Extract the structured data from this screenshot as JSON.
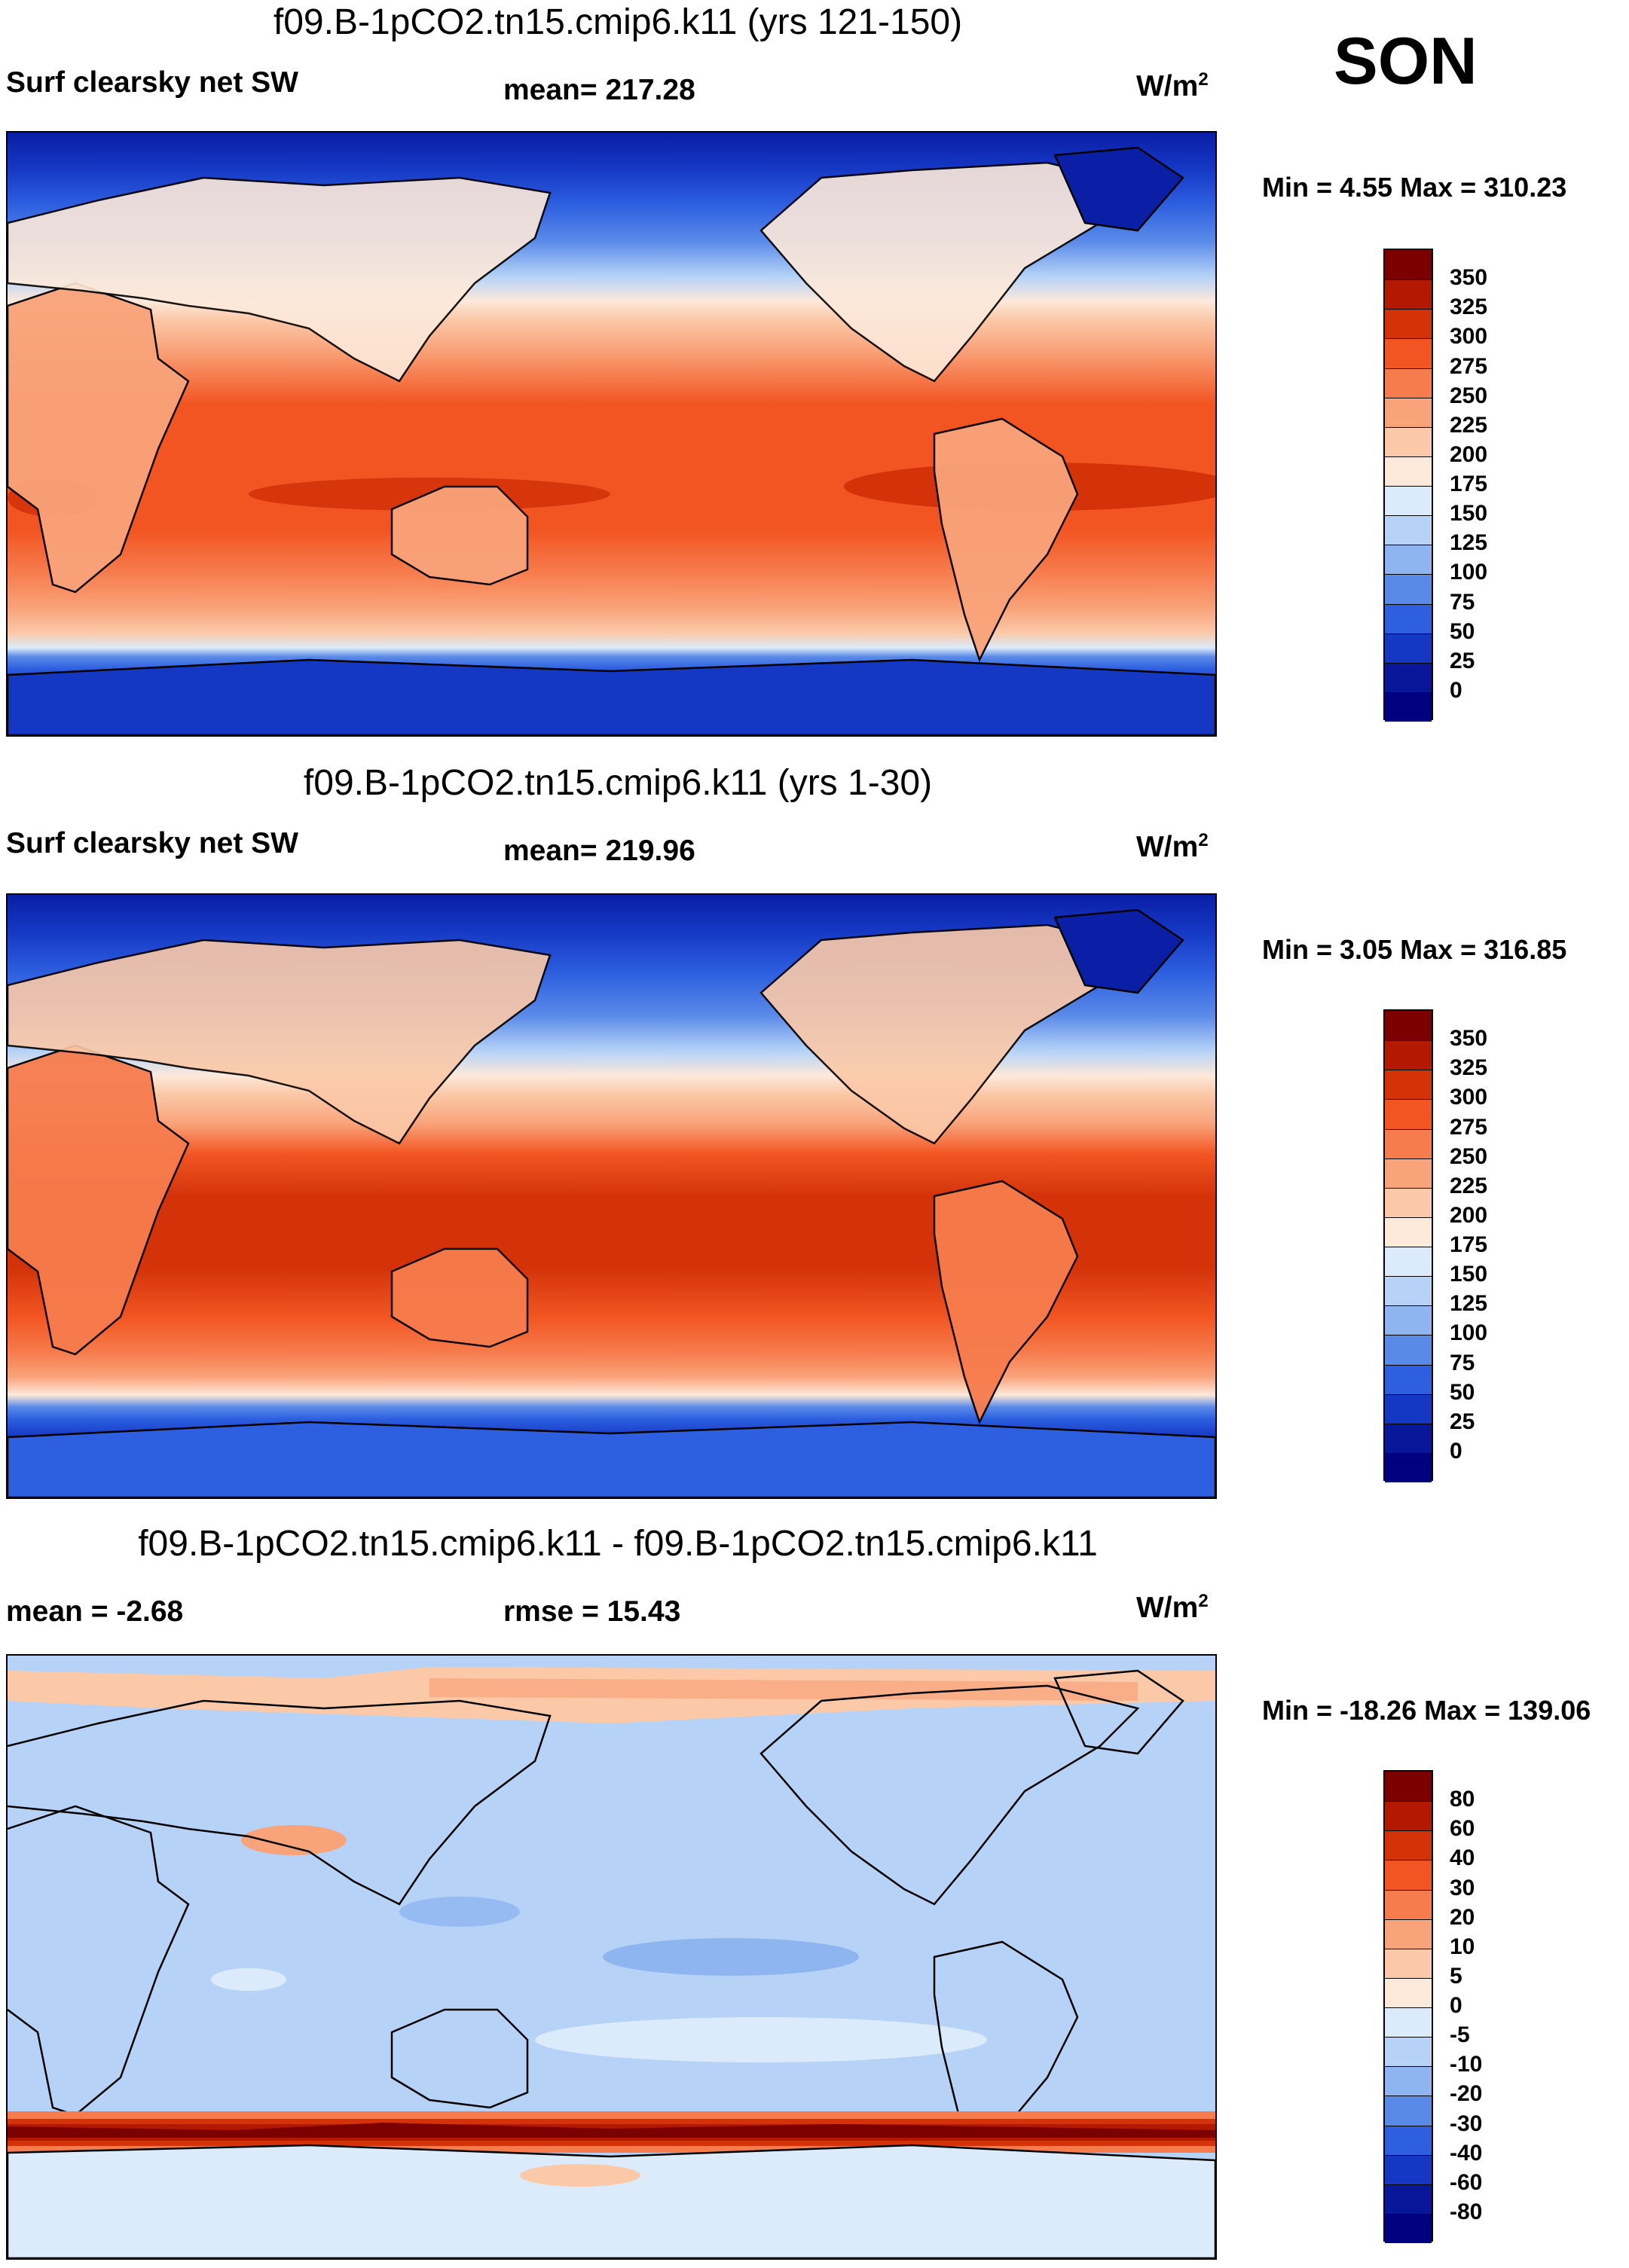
{
  "season": "SON",
  "panels": [
    {
      "title": "f09.B-1pCO2.tn15.cmip6.k11 (yrs 121-150)",
      "left_label": "Surf clearsky net SW",
      "mid_label": "mean= 217.28",
      "unit": "W/m",
      "unit_exp": "2",
      "minmax": "Min =   4.55 Max = 310.23"
    },
    {
      "title": "f09.B-1pCO2.tn15.cmip6.k11 (yrs 1-30)",
      "left_label": "Surf clearsky net SW",
      "mid_label": "mean= 219.96",
      "unit": "W/m",
      "unit_exp": "2",
      "minmax": "Min =   3.05 Max = 316.85"
    },
    {
      "title": "f09.B-1pCO2.tn15.cmip6.k11 - f09.B-1pCO2.tn15.cmip6.k11",
      "left_label": "mean =  -2.68",
      "mid_label": "rmse =  15.43",
      "unit": "W/m",
      "unit_exp": "2",
      "minmax": "Min = -18.26 Max = 139.06"
    }
  ],
  "colorbars": {
    "abs": {
      "labels": [
        "350",
        "325",
        "300",
        "275",
        "250",
        "225",
        "200",
        "175",
        "150",
        "125",
        "100",
        "75",
        "50",
        "25",
        "0"
      ],
      "colors": [
        "#7d0000",
        "#b31900",
        "#d4330a",
        "#f25522",
        "#f77c4d",
        "#f9a37a",
        "#fbc9a8",
        "#fde9da",
        "#dcebfb",
        "#b6d3f7",
        "#8fb5f0",
        "#5a8ae8",
        "#2d5fe0",
        "#1538c4",
        "#08169a",
        "#000080"
      ]
    },
    "diff": {
      "labels": [
        "80",
        "60",
        "40",
        "30",
        "20",
        "10",
        "5",
        "0",
        "-5",
        "-10",
        "-20",
        "-30",
        "-40",
        "-60",
        "-80"
      ],
      "colors": [
        "#7d0000",
        "#b31900",
        "#d4330a",
        "#f25522",
        "#f77c4d",
        "#f9a37a",
        "#fbc9a8",
        "#fde9da",
        "#dcebfb",
        "#b6d3f7",
        "#8fb5f0",
        "#5a8ae8",
        "#2d5fe0",
        "#1538c4",
        "#08169a",
        "#000080"
      ]
    }
  }
}
